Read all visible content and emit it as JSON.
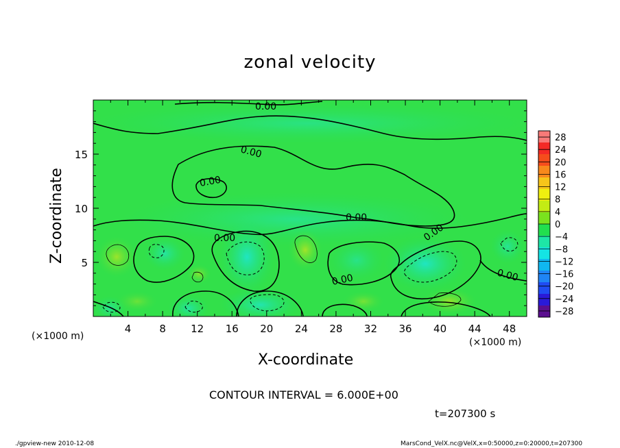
{
  "chart_data": {
    "type": "heatmap",
    "title": "zonal velocity",
    "xlabel": "X-coordinate",
    "ylabel": "Z-coordinate",
    "x_unit": "(×1000 m)",
    "x_ticks": [
      "4",
      "8",
      "12",
      "16",
      "20",
      "24",
      "28",
      "32",
      "36",
      "40",
      "44",
      "48"
    ],
    "y_ticks": [
      "5",
      "10",
      "15"
    ],
    "xlim": [
      0,
      50
    ],
    "ylim": [
      0,
      20
    ],
    "colorbar_ticks": [
      "28",
      "24",
      "20",
      "16",
      "12",
      "8",
      "4",
      "0",
      "-4",
      "-8",
      "-12",
      "-16",
      "-20",
      "-24",
      "-28"
    ],
    "colorbar_range": [
      -30,
      30
    ],
    "colorbar_colors": [
      "#5b0f8f",
      "#2a1ad8",
      "#1f4cf2",
      "#1f85f5",
      "#10b8f0",
      "#14e4e4",
      "#1ee6a6",
      "#22df4e",
      "#7ae21e",
      "#c3ec14",
      "#efef10",
      "#f7c51a",
      "#f8891c",
      "#f54d1c",
      "#f42a26",
      "#f87a78"
    ],
    "contour_labels": [
      "0.00",
      "0.00",
      "0.00",
      "0.00",
      "0.00",
      "0.00",
      "0.00",
      "0.00"
    ],
    "contour_interval": "CONTOUR INTERVAL = 6.000E+00",
    "time": "t=207300 s"
  },
  "footer": {
    "left": "./gpview-new  2010-12-08",
    "right": "MarsCond_VelX.nc@VelX,x=0:50000,z=0:20000,t=207300"
  }
}
